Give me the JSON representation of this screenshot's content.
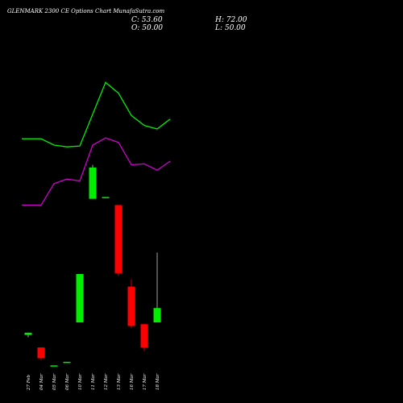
{
  "chart_data": {
    "type": "candlestick",
    "title": "GLENMARK 2300  CE Options  Chart MunafaSutra.com",
    "ohlc_labels": {
      "close": "C: 53.60",
      "high": "H: 72.00",
      "open": "O: 50.00",
      "low": "L: 50.00"
    },
    "categories": [
      "27 Feb",
      "04 Mar",
      "05 Mar",
      "06 Mar",
      "10 Mar",
      "11 Mar",
      "12 Mar",
      "13 Mar",
      "16 Mar",
      "17 Mar",
      "18 Mar"
    ],
    "candles": [
      {
        "open": 15.2,
        "high": 15.2,
        "low": 14.7,
        "close": 15.7
      },
      {
        "open": 12.4,
        "high": 12.4,
        "low": 9.6,
        "close": 10.0
      },
      {
        "open": 8.4,
        "high": 8.4,
        "low": 8.4,
        "close": 8.4
      },
      {
        "open": 9.2,
        "high": 9.2,
        "low": 9.2,
        "close": 9.2
      },
      {
        "open": 18.0,
        "high": 28.8,
        "low": 18.0,
        "close": 28.8
      },
      {
        "open": 45.6,
        "high": 53.2,
        "low": 45.6,
        "close": 52.6
      },
      {
        "open": 46.0,
        "high": 46.0,
        "low": 46.0,
        "close": 46.0
      },
      {
        "open": 44.2,
        "high": 44.2,
        "low": 28.4,
        "close": 29.0
      },
      {
        "open": 26.0,
        "high": 27.6,
        "low": 16.8,
        "close": 17.2
      },
      {
        "open": 17.6,
        "high": 17.6,
        "low": 11.6,
        "close": 12.4
      },
      {
        "open": 18.0,
        "high": 33.6,
        "low": 18.0,
        "close": 21.2
      }
    ],
    "ylim": [
      0,
      90
    ],
    "upper_band": {
      "color": "#00ee00",
      "points": [
        [
          -0.5,
          59.0
        ],
        [
          0,
          59.0
        ],
        [
          1,
          59.0
        ],
        [
          2,
          57.6
        ],
        [
          3,
          57.2
        ],
        [
          4,
          57.4
        ],
        [
          6,
          71.6
        ],
        [
          7,
          69.2
        ],
        [
          8,
          64.2
        ],
        [
          9,
          62.0
        ],
        [
          10,
          61.2
        ],
        [
          11,
          63.4
        ]
      ]
    },
    "lower_band": {
      "color": "#cc00cc",
      "points": [
        [
          -0.5,
          44.2
        ],
        [
          0,
          44.2
        ],
        [
          1,
          44.2
        ],
        [
          2,
          49.0
        ],
        [
          3,
          50.0
        ],
        [
          4,
          49.6
        ],
        [
          5,
          57.6
        ],
        [
          6,
          59.2
        ],
        [
          7,
          58.2
        ],
        [
          8,
          53.2
        ],
        [
          9,
          53.4
        ],
        [
          10,
          52.0
        ],
        [
          11,
          54.0
        ]
      ]
    },
    "up_color": "#00ee00",
    "down_color": "#ff0000",
    "grid": false,
    "legend": "none"
  }
}
